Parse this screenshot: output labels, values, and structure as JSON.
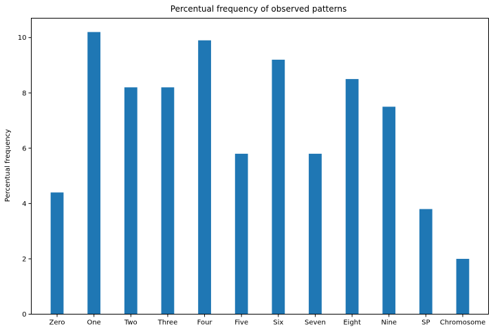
{
  "chart_data": {
    "type": "bar",
    "title": "Percentual frequency of observed patterns",
    "xlabel": "",
    "ylabel": "Percentual frequency",
    "categories": [
      "Zero",
      "One",
      "Two",
      "Three",
      "Four",
      "Five",
      "Six",
      "Seven",
      "Eight",
      "Nine",
      "SP",
      "Chromosome"
    ],
    "values": [
      4.4,
      10.2,
      8.2,
      8.2,
      9.9,
      5.8,
      9.2,
      5.8,
      8.5,
      7.5,
      3.8,
      2.0
    ],
    "ylim": [
      0,
      10.7
    ],
    "yticks": [
      "0",
      "2",
      "4",
      "6",
      "8",
      "10"
    ],
    "grid": false,
    "bar_color": "#1f77b4"
  }
}
